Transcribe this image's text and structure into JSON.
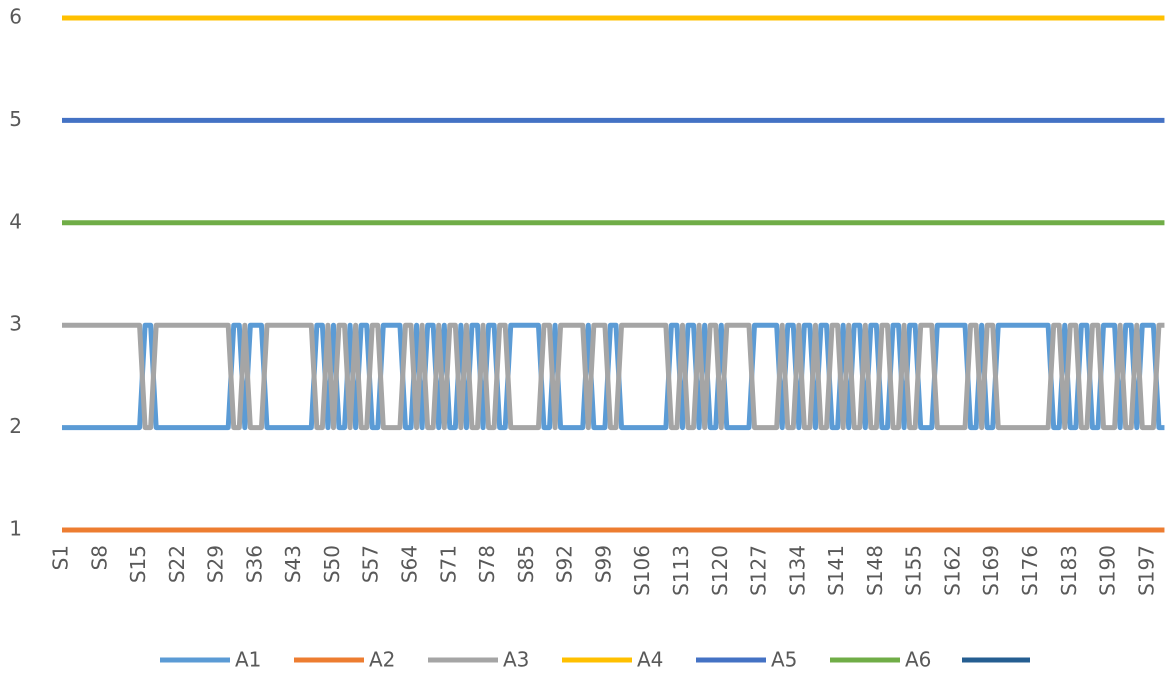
{
  "chart_data": {
    "type": "line",
    "categories": [
      "S1",
      null,
      null,
      null,
      null,
      null,
      null,
      "S8",
      null,
      null,
      null,
      null,
      null,
      null,
      "S15",
      null,
      null,
      null,
      null,
      null,
      null,
      "S22",
      null,
      null,
      null,
      null,
      null,
      null,
      "S29",
      null,
      null,
      null,
      null,
      null,
      null,
      "S36",
      null,
      null,
      null,
      null,
      null,
      null,
      "S43",
      null,
      null,
      null,
      null,
      null,
      null,
      "S50",
      null,
      null,
      null,
      null,
      null,
      null,
      "S57",
      null,
      null,
      null,
      null,
      null,
      null,
      "S64",
      null,
      null,
      null,
      null,
      null,
      null,
      "S71",
      null,
      null,
      null,
      null,
      null,
      null,
      "S78",
      null,
      null,
      null,
      null,
      null,
      null,
      "S85",
      null,
      null,
      null,
      null,
      null,
      null,
      "S92",
      null,
      null,
      null,
      null,
      null,
      null,
      "S99",
      null,
      null,
      null,
      null,
      null,
      null,
      "S106",
      null,
      null,
      null,
      null,
      null,
      null,
      "S113",
      null,
      null,
      null,
      null,
      null,
      null,
      "S120",
      null,
      null,
      null,
      null,
      null,
      null,
      "S127",
      null,
      null,
      null,
      null,
      null,
      null,
      "S134",
      null,
      null,
      null,
      null,
      null,
      null,
      "S141",
      null,
      null,
      null,
      null,
      null,
      null,
      "S148",
      null,
      null,
      null,
      null,
      null,
      null,
      "S155",
      null,
      null,
      null,
      null,
      null,
      null,
      "S162",
      null,
      null,
      null,
      null,
      null,
      null,
      "S169",
      null,
      null,
      null,
      null,
      null,
      null,
      "S176",
      null,
      null,
      null,
      null,
      null,
      null,
      "S183",
      null,
      null,
      null,
      null,
      null,
      null,
      "S190",
      null,
      null,
      null,
      null,
      null,
      null,
      "S197",
      null,
      null,
      null
    ],
    "series": [
      {
        "name": "A1",
        "color": "#5b9bd5",
        "values": [
          2,
          2,
          2,
          2,
          2,
          2,
          2,
          2,
          2,
          2,
          2,
          2,
          2,
          2,
          2,
          3,
          3,
          2,
          2,
          2,
          2,
          2,
          2,
          2,
          2,
          2,
          2,
          2,
          2,
          2,
          2,
          3,
          3,
          2,
          3,
          3,
          3,
          2,
          2,
          2,
          2,
          2,
          2,
          2,
          2,
          2,
          3,
          3,
          2,
          3,
          2,
          2,
          3,
          2,
          3,
          3,
          2,
          2,
          3,
          3,
          3,
          3,
          2,
          2,
          3,
          2,
          3,
          3,
          2,
          3,
          2,
          2,
          3,
          2,
          3,
          3,
          2,
          3,
          3,
          2,
          2,
          3,
          3,
          3,
          3,
          3,
          3,
          2,
          2,
          3,
          2,
          2,
          2,
          2,
          2,
          3,
          2,
          2,
          2,
          3,
          3,
          2,
          2,
          2,
          2,
          2,
          2,
          2,
          2,
          2,
          3,
          3,
          2,
          3,
          3,
          2,
          3,
          2,
          2,
          3,
          2,
          2,
          2,
          2,
          2,
          3,
          3,
          3,
          3,
          3,
          2,
          3,
          3,
          2,
          3,
          3,
          2,
          3,
          3,
          2,
          2,
          3,
          2,
          3,
          3,
          2,
          3,
          3,
          2,
          2,
          3,
          3,
          2,
          3,
          3,
          2,
          2,
          2,
          3,
          3,
          3,
          3,
          3,
          3,
          2,
          2,
          3,
          2,
          2,
          3,
          3,
          3,
          3,
          3,
          3,
          3,
          3,
          3,
          3,
          2,
          2,
          3,
          2,
          2,
          3,
          3,
          2,
          2,
          3,
          3,
          3,
          2,
          3,
          3,
          2,
          3,
          3,
          3,
          2,
          2
        ]
      },
      {
        "name": "A2",
        "color": "#ed7d31",
        "values": [
          1,
          1,
          1,
          1,
          1,
          1,
          1,
          1,
          1,
          1,
          1,
          1,
          1,
          1,
          1,
          1,
          1,
          1,
          1,
          1,
          1,
          1,
          1,
          1,
          1,
          1,
          1,
          1,
          1,
          1,
          1,
          1,
          1,
          1,
          1,
          1,
          1,
          1,
          1,
          1,
          1,
          1,
          1,
          1,
          1,
          1,
          1,
          1,
          1,
          1,
          1,
          1,
          1,
          1,
          1,
          1,
          1,
          1,
          1,
          1,
          1,
          1,
          1,
          1,
          1,
          1,
          1,
          1,
          1,
          1,
          1,
          1,
          1,
          1,
          1,
          1,
          1,
          1,
          1,
          1,
          1,
          1,
          1,
          1,
          1,
          1,
          1,
          1,
          1,
          1,
          1,
          1,
          1,
          1,
          1,
          1,
          1,
          1,
          1,
          1,
          1,
          1,
          1,
          1,
          1,
          1,
          1,
          1,
          1,
          1,
          1,
          1,
          1,
          1,
          1,
          1,
          1,
          1,
          1,
          1,
          1,
          1,
          1,
          1,
          1,
          1,
          1,
          1,
          1,
          1,
          1,
          1,
          1,
          1,
          1,
          1,
          1,
          1,
          1,
          1,
          1,
          1,
          1,
          1,
          1,
          1,
          1,
          1,
          1,
          1,
          1,
          1,
          1,
          1,
          1,
          1,
          1,
          1,
          1,
          1,
          1,
          1,
          1,
          1,
          1,
          1,
          1,
          1,
          1,
          1,
          1,
          1,
          1,
          1,
          1,
          1,
          1,
          1,
          1,
          1,
          1,
          1,
          1,
          1,
          1,
          1,
          1,
          1,
          1,
          1,
          1,
          1,
          1,
          1,
          1,
          1,
          1,
          1,
          1,
          1
        ]
      },
      {
        "name": "A3",
        "color": "#a5a5a5",
        "values": [
          3,
          3,
          3,
          3,
          3,
          3,
          3,
          3,
          3,
          3,
          3,
          3,
          3,
          3,
          3,
          2,
          2,
          3,
          3,
          3,
          3,
          3,
          3,
          3,
          3,
          3,
          3,
          3,
          3,
          3,
          3,
          2,
          2,
          3,
          2,
          2,
          2,
          3,
          3,
          3,
          3,
          3,
          3,
          3,
          3,
          3,
          2,
          2,
          3,
          2,
          3,
          3,
          2,
          3,
          2,
          2,
          3,
          3,
          2,
          2,
          2,
          2,
          3,
          3,
          2,
          3,
          2,
          2,
          3,
          2,
          3,
          3,
          2,
          3,
          2,
          2,
          3,
          2,
          2,
          3,
          3,
          2,
          2,
          2,
          2,
          2,
          2,
          3,
          3,
          2,
          3,
          3,
          3,
          3,
          3,
          2,
          3,
          3,
          3,
          2,
          2,
          3,
          3,
          3,
          3,
          3,
          3,
          3,
          3,
          3,
          2,
          2,
          3,
          2,
          2,
          3,
          2,
          3,
          3,
          2,
          3,
          3,
          3,
          3,
          3,
          2,
          2,
          2,
          2,
          2,
          3,
          2,
          2,
          3,
          2,
          2,
          3,
          2,
          2,
          3,
          3,
          2,
          3,
          2,
          2,
          3,
          2,
          2,
          3,
          3,
          2,
          2,
          3,
          2,
          2,
          3,
          3,
          3,
          2,
          2,
          2,
          2,
          2,
          2,
          3,
          3,
          2,
          3,
          3,
          2,
          2,
          2,
          2,
          2,
          2,
          2,
          2,
          2,
          2,
          3,
          3,
          2,
          3,
          3,
          2,
          2,
          3,
          3,
          2,
          2,
          2,
          3,
          2,
          2,
          3,
          2,
          2,
          2,
          3,
          3
        ]
      },
      {
        "name": "A4",
        "color": "#ffc000",
        "values": [
          6,
          6,
          6,
          6,
          6,
          6,
          6,
          6,
          6,
          6,
          6,
          6,
          6,
          6,
          6,
          6,
          6,
          6,
          6,
          6,
          6,
          6,
          6,
          6,
          6,
          6,
          6,
          6,
          6,
          6,
          6,
          6,
          6,
          6,
          6,
          6,
          6,
          6,
          6,
          6,
          6,
          6,
          6,
          6,
          6,
          6,
          6,
          6,
          6,
          6,
          6,
          6,
          6,
          6,
          6,
          6,
          6,
          6,
          6,
          6,
          6,
          6,
          6,
          6,
          6,
          6,
          6,
          6,
          6,
          6,
          6,
          6,
          6,
          6,
          6,
          6,
          6,
          6,
          6,
          6,
          6,
          6,
          6,
          6,
          6,
          6,
          6,
          6,
          6,
          6,
          6,
          6,
          6,
          6,
          6,
          6,
          6,
          6,
          6,
          6,
          6,
          6,
          6,
          6,
          6,
          6,
          6,
          6,
          6,
          6,
          6,
          6,
          6,
          6,
          6,
          6,
          6,
          6,
          6,
          6,
          6,
          6,
          6,
          6,
          6,
          6,
          6,
          6,
          6,
          6,
          6,
          6,
          6,
          6,
          6,
          6,
          6,
          6,
          6,
          6,
          6,
          6,
          6,
          6,
          6,
          6,
          6,
          6,
          6,
          6,
          6,
          6,
          6,
          6,
          6,
          6,
          6,
          6,
          6,
          6,
          6,
          6,
          6,
          6,
          6,
          6,
          6,
          6,
          6,
          6,
          6,
          6,
          6,
          6,
          6,
          6,
          6,
          6,
          6,
          6,
          6,
          6,
          6,
          6,
          6,
          6,
          6,
          6,
          6,
          6,
          6,
          6,
          6,
          6,
          6,
          6,
          6,
          6,
          6,
          6
        ]
      },
      {
        "name": "A5",
        "color": "#4472c4",
        "values": [
          5,
          5,
          5,
          5,
          5,
          5,
          5,
          5,
          5,
          5,
          5,
          5,
          5,
          5,
          5,
          5,
          5,
          5,
          5,
          5,
          5,
          5,
          5,
          5,
          5,
          5,
          5,
          5,
          5,
          5,
          5,
          5,
          5,
          5,
          5,
          5,
          5,
          5,
          5,
          5,
          5,
          5,
          5,
          5,
          5,
          5,
          5,
          5,
          5,
          5,
          5,
          5,
          5,
          5,
          5,
          5,
          5,
          5,
          5,
          5,
          5,
          5,
          5,
          5,
          5,
          5,
          5,
          5,
          5,
          5,
          5,
          5,
          5,
          5,
          5,
          5,
          5,
          5,
          5,
          5,
          5,
          5,
          5,
          5,
          5,
          5,
          5,
          5,
          5,
          5,
          5,
          5,
          5,
          5,
          5,
          5,
          5,
          5,
          5,
          5,
          5,
          5,
          5,
          5,
          5,
          5,
          5,
          5,
          5,
          5,
          5,
          5,
          5,
          5,
          5,
          5,
          5,
          5,
          5,
          5,
          5,
          5,
          5,
          5,
          5,
          5,
          5,
          5,
          5,
          5,
          5,
          5,
          5,
          5,
          5,
          5,
          5,
          5,
          5,
          5,
          5,
          5,
          5,
          5,
          5,
          5,
          5,
          5,
          5,
          5,
          5,
          5,
          5,
          5,
          5,
          5,
          5,
          5,
          5,
          5,
          5,
          5,
          5,
          5,
          5,
          5,
          5,
          5,
          5,
          5,
          5,
          5,
          5,
          5,
          5,
          5,
          5,
          5,
          5,
          5,
          5,
          5,
          5,
          5,
          5,
          5,
          5,
          5,
          5,
          5,
          5,
          5,
          5,
          5,
          5,
          5,
          5,
          5,
          5,
          5
        ]
      },
      {
        "name": "A6",
        "color": "#70ad47",
        "values": [
          4,
          4,
          4,
          4,
          4,
          4,
          4,
          4,
          4,
          4,
          4,
          4,
          4,
          4,
          4,
          4,
          4,
          4,
          4,
          4,
          4,
          4,
          4,
          4,
          4,
          4,
          4,
          4,
          4,
          4,
          4,
          4,
          4,
          4,
          4,
          4,
          4,
          4,
          4,
          4,
          4,
          4,
          4,
          4,
          4,
          4,
          4,
          4,
          4,
          4,
          4,
          4,
          4,
          4,
          4,
          4,
          4,
          4,
          4,
          4,
          4,
          4,
          4,
          4,
          4,
          4,
          4,
          4,
          4,
          4,
          4,
          4,
          4,
          4,
          4,
          4,
          4,
          4,
          4,
          4,
          4,
          4,
          4,
          4,
          4,
          4,
          4,
          4,
          4,
          4,
          4,
          4,
          4,
          4,
          4,
          4,
          4,
          4,
          4,
          4,
          4,
          4,
          4,
          4,
          4,
          4,
          4,
          4,
          4,
          4,
          4,
          4,
          4,
          4,
          4,
          4,
          4,
          4,
          4,
          4,
          4,
          4,
          4,
          4,
          4,
          4,
          4,
          4,
          4,
          4,
          4,
          4,
          4,
          4,
          4,
          4,
          4,
          4,
          4,
          4,
          4,
          4,
          4,
          4,
          4,
          4,
          4,
          4,
          4,
          4,
          4,
          4,
          4,
          4,
          4,
          4,
          4,
          4,
          4,
          4,
          4,
          4,
          4,
          4,
          4,
          4,
          4,
          4,
          4,
          4,
          4,
          4,
          4,
          4,
          4,
          4,
          4,
          4,
          4,
          4,
          4,
          4,
          4,
          4,
          4,
          4,
          4,
          4,
          4,
          4,
          4,
          4,
          4,
          4,
          4,
          4,
          4,
          4,
          4,
          4
        ]
      }
    ],
    "ylim": [
      1,
      6
    ],
    "yticks": [
      1,
      2,
      3,
      4,
      5,
      6
    ],
    "grid": false,
    "legend": "bottom"
  }
}
